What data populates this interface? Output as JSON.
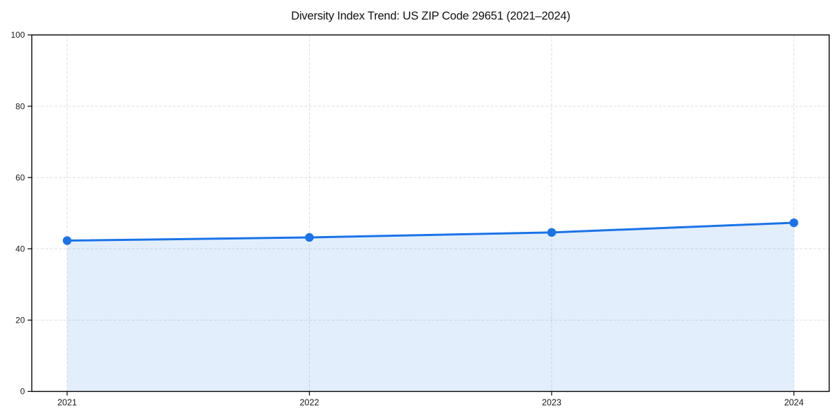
{
  "figure": {
    "background": "#ffffff"
  },
  "chart_data": {
    "type": "area",
    "title": "Diversity Index Trend: US ZIP Code 29651 (2021–2024)",
    "series": [
      {
        "name": "Diversity Index",
        "x": [
          2021,
          2022,
          2023,
          2024
        ],
        "values": [
          42.3,
          43.2,
          44.6,
          47.3
        ]
      }
    ],
    "xlabel": "",
    "ylabel": "",
    "ylim": [
      0,
      100
    ],
    "yticks": [
      0,
      20,
      40,
      60,
      80,
      100
    ],
    "ytick_labels": [
      "0",
      "20",
      "40",
      "60",
      "80",
      "100"
    ],
    "xtick_labels": [
      "2021",
      "2022",
      "2023",
      "2024"
    ],
    "grid": {
      "visible": true,
      "style": "dashed",
      "color": "#dedede"
    },
    "legend": {
      "visible": false
    },
    "marker": "circle",
    "colors": {
      "line": "#1a73e8",
      "marker": "#1a73e8",
      "fill": "#1a73e8",
      "fill_opacity": 0.12,
      "axis": "#000000",
      "tick_text": "#1a1a1a"
    }
  }
}
